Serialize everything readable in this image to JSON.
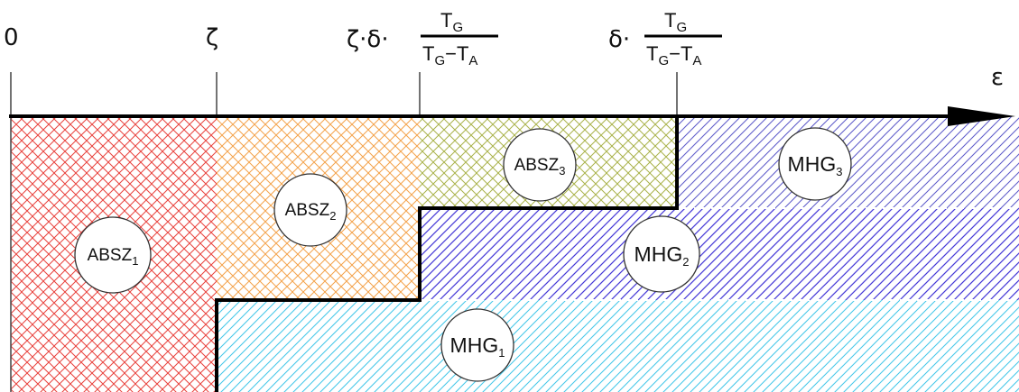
{
  "axis": {
    "origin_label": "0",
    "zeta_label": "ζ",
    "zeta_delta_prefix": "ζ·δ·",
    "delta_prefix": "δ·",
    "fraction_numerator": "T",
    "fraction_numerator_sub": "G",
    "fraction_denominator": "T",
    "fraction_denominator_sub1": "G",
    "fraction_minus": "−T",
    "fraction_denominator_sub2": "A",
    "epsilon_label": "ε"
  },
  "zones": {
    "absz1": {
      "base": "ABSZ",
      "sub": "1",
      "color": "#e8413c"
    },
    "absz2": {
      "base": "ABSZ",
      "sub": "2",
      "color": "#f4a24a"
    },
    "absz3": {
      "base": "ABSZ",
      "sub": "3",
      "color": "#a9b24a"
    },
    "mhg1": {
      "base": "MHG",
      "sub": "1",
      "color": "#3fc6e8"
    },
    "mhg2": {
      "base": "MHG",
      "sub": "2",
      "color": "#4437d6"
    },
    "mhg3": {
      "base": "MHG",
      "sub": "3",
      "color": "#5a57c8"
    }
  },
  "colors": {
    "boundary": "#000000",
    "tick": "#444444"
  }
}
